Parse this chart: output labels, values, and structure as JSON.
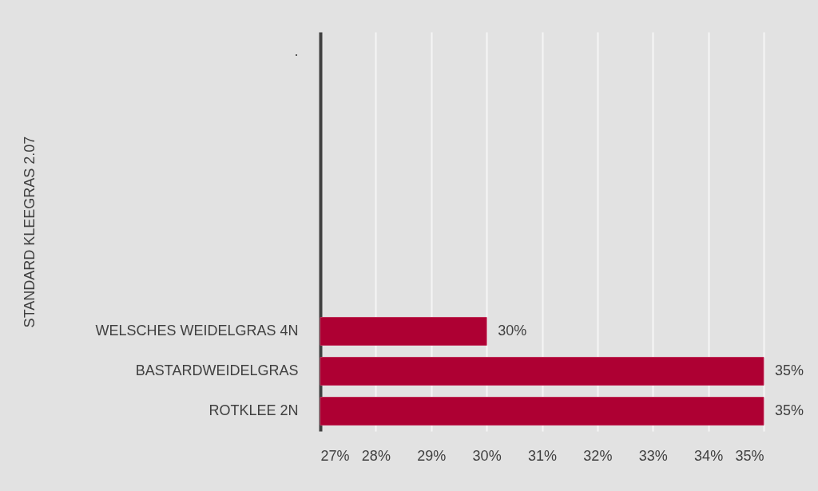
{
  "chart_data": {
    "type": "bar",
    "orientation": "horizontal",
    "ylabel": "STANDARD KLEEGRAS 2.07",
    "categories": [
      ".",
      null,
      null,
      null,
      null,
      null,
      null,
      "WELSCHES WEIDELGRAS 4N",
      "BASTARDWEIDELGRAS",
      "ROTKLEE 2N"
    ],
    "values": [
      null,
      null,
      null,
      null,
      null,
      null,
      null,
      30,
      35,
      35
    ],
    "value_labels": [
      null,
      null,
      null,
      null,
      null,
      null,
      null,
      "30%",
      "35%",
      "35%"
    ],
    "color": "#ae0033",
    "xlim": [
      27,
      35
    ],
    "xticks": [
      {
        "value": 27,
        "label": "27%"
      },
      {
        "value": 28,
        "label": "28%"
      },
      {
        "value": 29,
        "label": "29%"
      },
      {
        "value": 30,
        "label": "30%"
      },
      {
        "value": 31,
        "label": "31%"
      },
      {
        "value": 32,
        "label": "32%"
      },
      {
        "value": 33,
        "label": "33%"
      },
      {
        "value": 34,
        "label": "34%"
      },
      {
        "value": 35,
        "label": "35%"
      }
    ],
    "grid": "x"
  }
}
